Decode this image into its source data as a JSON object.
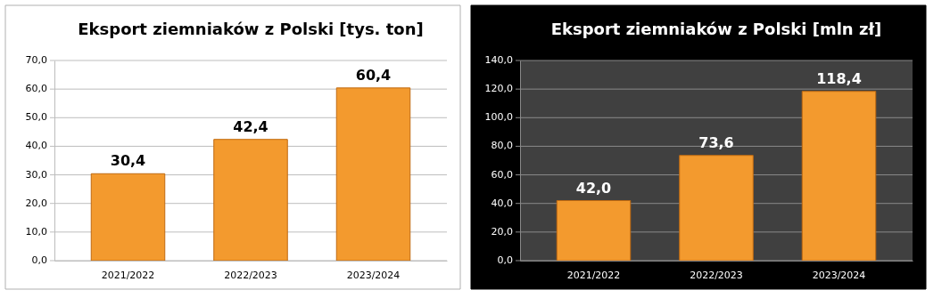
{
  "chart_data": [
    {
      "type": "bar",
      "title": "Eksport ziemniaków z Polski [tys. ton]",
      "categories": [
        "2021/2022",
        "2022/2023",
        "2023/2024"
      ],
      "values": [
        30.4,
        42.4,
        60.4
      ],
      "value_labels": [
        "30,4",
        "42,4",
        "60,4"
      ],
      "color": "#f39a2e",
      "ylim": [
        0,
        70
      ],
      "yticks": [
        {
          "value": 0,
          "label": "0,0"
        },
        {
          "value": 10,
          "label": "10,0"
        },
        {
          "value": 20,
          "label": "20,0"
        },
        {
          "value": 30,
          "label": "30,0"
        },
        {
          "value": 40,
          "label": "40,0"
        },
        {
          "value": 50,
          "label": "50,0"
        },
        {
          "value": 60,
          "label": "60,0"
        },
        {
          "value": 70,
          "label": "70,0"
        }
      ],
      "grid": "y"
    },
    {
      "type": "bar",
      "title": "Eksport ziemniaków z Polski [mln zł]",
      "categories": [
        "2021/2022",
        "2022/2023",
        "2023/2024"
      ],
      "values": [
        42.0,
        73.6,
        118.4
      ],
      "value_labels": [
        "42,0",
        "73,6",
        "118,4"
      ],
      "color": "#f39a2e",
      "ylim": [
        0,
        140
      ],
      "yticks": [
        {
          "value": 0,
          "label": "0,0"
        },
        {
          "value": 20,
          "label": "20,0"
        },
        {
          "value": 40,
          "label": "40,0"
        },
        {
          "value": 60,
          "label": "60,0"
        },
        {
          "value": 80,
          "label": "80,0"
        },
        {
          "value": 100,
          "label": "100,0"
        },
        {
          "value": 120,
          "label": "120,0"
        },
        {
          "value": 140,
          "label": "140,0"
        }
      ],
      "grid": "y"
    }
  ]
}
